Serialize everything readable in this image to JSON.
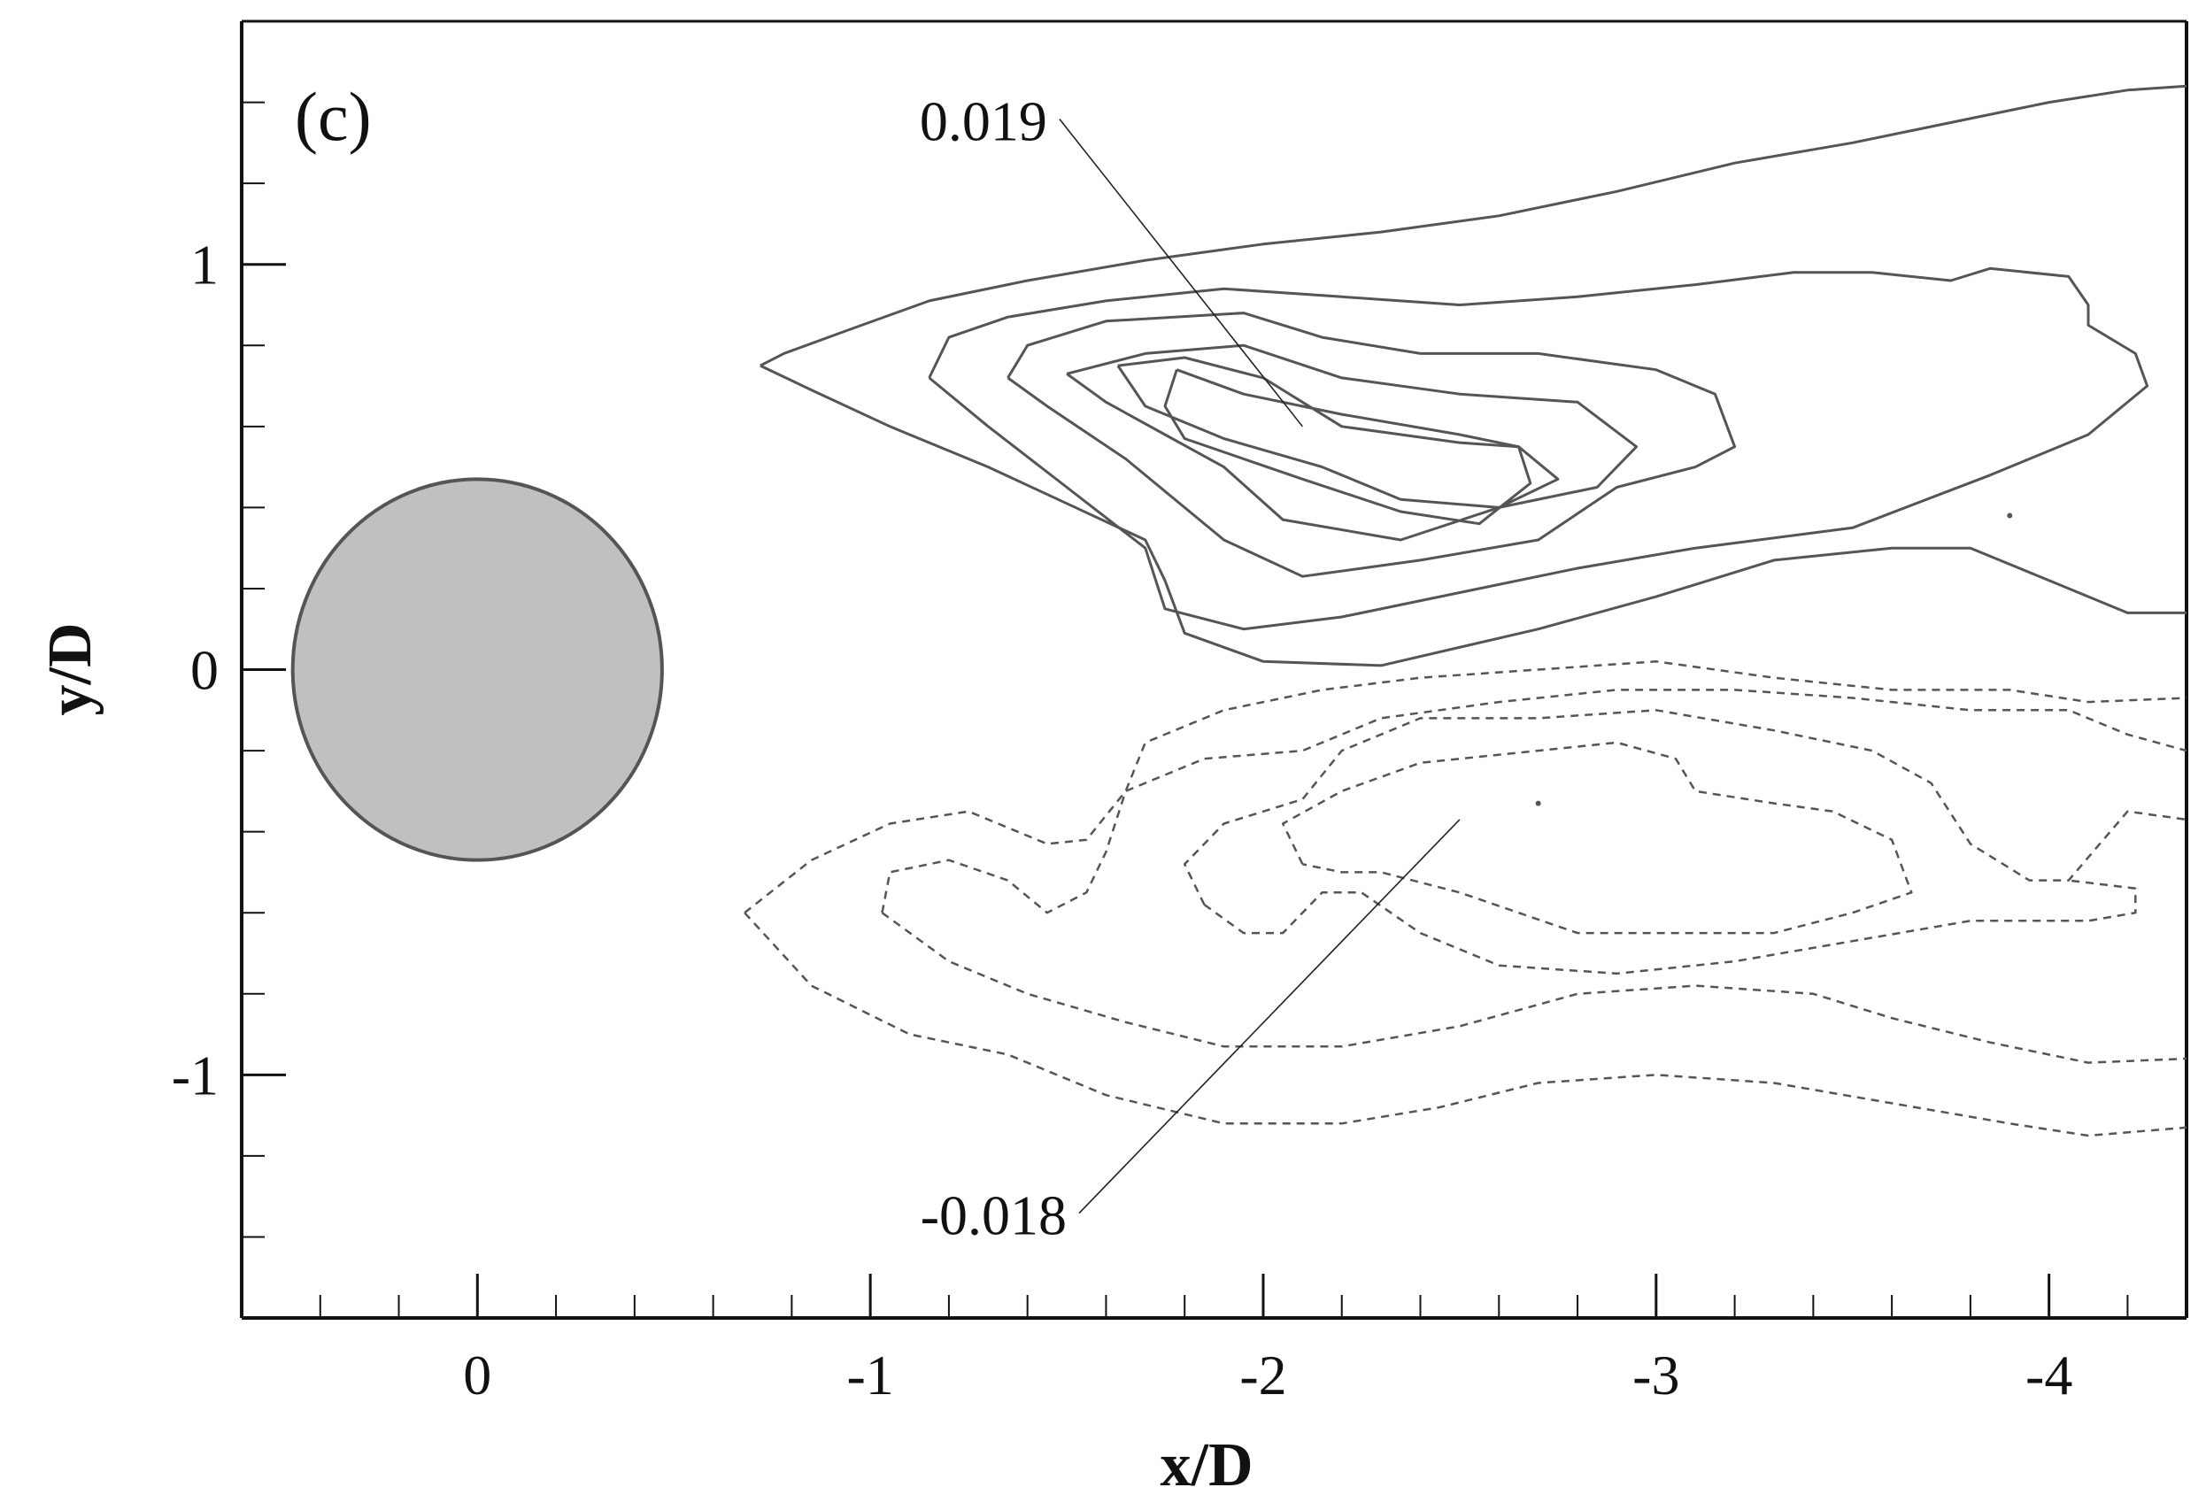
{
  "chart_data": {
    "type": "contour",
    "panel_label": "(c)",
    "xlabel": "x/D",
    "ylabel": "y/D",
    "xlim": [
      0.6,
      -4.35
    ],
    "ylim": [
      -1.6,
      1.6
    ],
    "x_ticks": [
      0,
      -1,
      -2,
      -3,
      -4
    ],
    "x_tick_labels": [
      "0",
      "-1",
      "-2",
      "-3",
      "-4"
    ],
    "y_ticks": [
      -1,
      0,
      1
    ],
    "y_tick_labels": [
      "-1",
      "0",
      "1"
    ],
    "cylinder": {
      "center": [
        0,
        0
      ],
      "radius": 0.47,
      "fill": "#c0c0c0",
      "stroke": "#555555"
    },
    "annotations": [
      {
        "text": "0.019",
        "text_x": -1.45,
        "text_y": 1.35,
        "target_x": -2.1,
        "target_y": 0.6
      },
      {
        "text": "-0.018",
        "text_x": -1.5,
        "text_y": -1.35,
        "target_x": -2.5,
        "target_y": -0.37
      }
    ],
    "positive_contours": [
      [
        [
          -0.72,
          0.75
        ],
        [
          -0.78,
          0.78
        ],
        [
          -0.95,
          0.84
        ],
        [
          -1.15,
          0.91
        ],
        [
          -1.4,
          0.96
        ],
        [
          -1.7,
          1.01
        ],
        [
          -2.0,
          1.05
        ],
        [
          -2.3,
          1.08
        ],
        [
          -2.6,
          1.12
        ],
        [
          -2.9,
          1.18
        ],
        [
          -3.2,
          1.25
        ],
        [
          -3.5,
          1.3
        ],
        [
          -3.8,
          1.36
        ],
        [
          -4.0,
          1.4
        ],
        [
          -4.2,
          1.43
        ],
        [
          -4.35,
          1.44
        ]
      ],
      [
        [
          -0.72,
          0.75
        ],
        [
          -0.85,
          0.69
        ],
        [
          -1.05,
          0.6
        ],
        [
          -1.3,
          0.5
        ],
        [
          -1.5,
          0.41
        ],
        [
          -1.7,
          0.32
        ],
        [
          -1.75,
          0.22
        ],
        [
          -1.8,
          0.09
        ],
        [
          -2.0,
          0.02
        ],
        [
          -2.3,
          0.01
        ],
        [
          -2.7,
          0.1
        ],
        [
          -3.0,
          0.18
        ],
        [
          -3.3,
          0.27
        ],
        [
          -3.6,
          0.3
        ],
        [
          -3.8,
          0.3
        ],
        [
          -4.0,
          0.22
        ],
        [
          -4.2,
          0.14
        ],
        [
          -4.35,
          0.14
        ]
      ],
      [
        [
          -1.15,
          0.72
        ],
        [
          -1.2,
          0.82
        ],
        [
          -1.35,
          0.87
        ],
        [
          -1.6,
          0.91
        ],
        [
          -1.9,
          0.94
        ],
        [
          -2.2,
          0.92
        ],
        [
          -2.5,
          0.9
        ],
        [
          -2.8,
          0.92
        ],
        [
          -3.1,
          0.95
        ],
        [
          -3.35,
          0.98
        ],
        [
          -3.55,
          0.98
        ],
        [
          -3.75,
          0.96
        ],
        [
          -3.85,
          0.99
        ],
        [
          -4.05,
          0.97
        ],
        [
          -4.1,
          0.9
        ],
        [
          -4.1,
          0.85
        ],
        [
          -4.22,
          0.78
        ],
        [
          -4.25,
          0.7
        ],
        [
          -4.1,
          0.58
        ],
        [
          -3.85,
          0.48
        ],
        [
          -3.5,
          0.35
        ],
        [
          -3.1,
          0.3
        ],
        [
          -2.8,
          0.25
        ],
        [
          -2.5,
          0.19
        ],
        [
          -2.2,
          0.13
        ],
        [
          -1.95,
          0.1
        ],
        [
          -1.75,
          0.15
        ],
        [
          -1.7,
          0.3
        ],
        [
          -1.5,
          0.45
        ],
        [
          -1.3,
          0.6
        ],
        [
          -1.15,
          0.72
        ]
      ],
      [
        [
          -1.35,
          0.72
        ],
        [
          -1.4,
          0.8
        ],
        [
          -1.6,
          0.86
        ],
        [
          -1.95,
          0.88
        ],
        [
          -2.15,
          0.82
        ],
        [
          -2.4,
          0.78
        ],
        [
          -2.7,
          0.78
        ],
        [
          -3.0,
          0.74
        ],
        [
          -3.15,
          0.68
        ],
        [
          -3.2,
          0.55
        ],
        [
          -3.1,
          0.5
        ],
        [
          -2.9,
          0.45
        ],
        [
          -2.7,
          0.32
        ],
        [
          -2.4,
          0.27
        ],
        [
          -2.1,
          0.23
        ],
        [
          -1.9,
          0.32
        ],
        [
          -1.65,
          0.52
        ],
        [
          -1.45,
          0.65
        ],
        [
          -1.35,
          0.72
        ]
      ],
      [
        [
          -1.5,
          0.73
        ],
        [
          -1.7,
          0.78
        ],
        [
          -1.95,
          0.8
        ],
        [
          -2.2,
          0.72
        ],
        [
          -2.5,
          0.68
        ],
        [
          -2.8,
          0.66
        ],
        [
          -2.95,
          0.55
        ],
        [
          -2.85,
          0.45
        ],
        [
          -2.6,
          0.4
        ],
        [
          -2.35,
          0.32
        ],
        [
          -2.05,
          0.37
        ],
        [
          -1.9,
          0.5
        ],
        [
          -1.75,
          0.58
        ],
        [
          -1.6,
          0.66
        ],
        [
          -1.5,
          0.73
        ]
      ],
      [
        [
          -1.63,
          0.75
        ],
        [
          -1.8,
          0.77
        ],
        [
          -2.0,
          0.72
        ],
        [
          -2.2,
          0.6
        ],
        [
          -2.5,
          0.56
        ],
        [
          -2.65,
          0.55
        ],
        [
          -2.75,
          0.47
        ],
        [
          -2.6,
          0.4
        ],
        [
          -2.35,
          0.42
        ],
        [
          -2.15,
          0.5
        ],
        [
          -1.9,
          0.57
        ],
        [
          -1.7,
          0.65
        ],
        [
          -1.63,
          0.75
        ]
      ],
      [
        [
          -1.78,
          0.74
        ],
        [
          -1.95,
          0.68
        ],
        [
          -2.2,
          0.63
        ],
        [
          -2.5,
          0.58
        ],
        [
          -2.65,
          0.55
        ],
        [
          -2.68,
          0.46
        ],
        [
          -2.55,
          0.36
        ],
        [
          -2.35,
          0.39
        ],
        [
          -2.1,
          0.47
        ],
        [
          -1.95,
          0.52
        ],
        [
          -1.8,
          0.57
        ],
        [
          -1.75,
          0.65
        ],
        [
          -1.78,
          0.74
        ]
      ]
    ],
    "negative_contours": [
      [
        [
          -0.68,
          -0.6
        ],
        [
          -0.85,
          -0.47
        ],
        [
          -1.05,
          -0.38
        ],
        [
          -1.25,
          -0.35
        ],
        [
          -1.45,
          -0.43
        ],
        [
          -1.55,
          -0.42
        ],
        [
          -1.65,
          -0.3
        ],
        [
          -1.7,
          -0.18
        ],
        [
          -1.9,
          -0.1
        ],
        [
          -2.15,
          -0.05
        ],
        [
          -2.4,
          -0.02
        ],
        [
          -2.7,
          0.0
        ],
        [
          -3.0,
          0.02
        ],
        [
          -3.3,
          -0.02
        ],
        [
          -3.6,
          -0.05
        ],
        [
          -3.9,
          -0.05
        ],
        [
          -4.1,
          -0.08
        ],
        [
          -4.35,
          -0.07
        ]
      ],
      [
        [
          -0.68,
          -0.6
        ],
        [
          -0.85,
          -0.78
        ],
        [
          -1.1,
          -0.9
        ],
        [
          -1.35,
          -0.95
        ],
        [
          -1.6,
          -1.05
        ],
        [
          -1.9,
          -1.12
        ],
        [
          -2.2,
          -1.12
        ],
        [
          -2.45,
          -1.08
        ],
        [
          -2.7,
          -1.02
        ],
        [
          -3.0,
          -1.0
        ],
        [
          -3.3,
          -1.02
        ],
        [
          -3.6,
          -1.07
        ],
        [
          -3.9,
          -1.12
        ],
        [
          -4.1,
          -1.15
        ],
        [
          -4.35,
          -1.13
        ]
      ],
      [
        [
          -1.03,
          -0.6
        ],
        [
          -1.05,
          -0.5
        ],
        [
          -1.2,
          -0.47
        ],
        [
          -1.35,
          -0.52
        ],
        [
          -1.45,
          -0.6
        ],
        [
          -1.55,
          -0.55
        ],
        [
          -1.6,
          -0.45
        ],
        [
          -1.65,
          -0.3
        ],
        [
          -1.85,
          -0.22
        ],
        [
          -2.1,
          -0.2
        ],
        [
          -2.3,
          -0.12
        ],
        [
          -2.6,
          -0.08
        ],
        [
          -2.9,
          -0.05
        ],
        [
          -3.2,
          -0.05
        ],
        [
          -3.5,
          -0.07
        ],
        [
          -3.8,
          -0.1
        ],
        [
          -4.05,
          -0.1
        ],
        [
          -4.2,
          -0.16
        ],
        [
          -4.35,
          -0.2
        ]
      ],
      [
        [
          -1.03,
          -0.6
        ],
        [
          -1.2,
          -0.72
        ],
        [
          -1.4,
          -0.8
        ],
        [
          -1.65,
          -0.87
        ],
        [
          -1.9,
          -0.93
        ],
        [
          -2.2,
          -0.93
        ],
        [
          -2.5,
          -0.88
        ],
        [
          -2.8,
          -0.8
        ],
        [
          -3.1,
          -0.78
        ],
        [
          -3.4,
          -0.8
        ],
        [
          -3.6,
          -0.86
        ],
        [
          -3.85,
          -0.92
        ],
        [
          -4.1,
          -0.97
        ],
        [
          -4.35,
          -0.96
        ]
      ],
      [
        [
          -1.85,
          -0.58
        ],
        [
          -1.8,
          -0.48
        ],
        [
          -1.9,
          -0.38
        ],
        [
          -2.1,
          -0.32
        ],
        [
          -2.2,
          -0.2
        ],
        [
          -2.4,
          -0.12
        ],
        [
          -2.7,
          -0.12
        ],
        [
          -3.0,
          -0.1
        ],
        [
          -3.3,
          -0.15
        ],
        [
          -3.55,
          -0.2
        ],
        [
          -3.7,
          -0.28
        ],
        [
          -3.8,
          -0.43
        ],
        [
          -3.95,
          -0.52
        ],
        [
          -4.05,
          -0.52
        ],
        [
          -4.2,
          -0.35
        ],
        [
          -4.35,
          -0.37
        ]
      ],
      [
        [
          -1.85,
          -0.58
        ],
        [
          -1.95,
          -0.65
        ],
        [
          -2.05,
          -0.65
        ],
        [
          -2.1,
          -0.6
        ],
        [
          -2.15,
          -0.55
        ],
        [
          -2.25,
          -0.55
        ],
        [
          -2.4,
          -0.65
        ],
        [
          -2.6,
          -0.73
        ],
        [
          -2.9,
          -0.75
        ],
        [
          -3.2,
          -0.72
        ],
        [
          -3.5,
          -0.67
        ],
        [
          -3.8,
          -0.62
        ],
        [
          -4.1,
          -0.62
        ],
        [
          -4.22,
          -0.6
        ],
        [
          -4.22,
          -0.54
        ],
        [
          -4.05,
          -0.52
        ]
      ],
      [
        [
          -2.1,
          -0.48
        ],
        [
          -2.05,
          -0.38
        ],
        [
          -2.2,
          -0.3
        ],
        [
          -2.4,
          -0.23
        ],
        [
          -2.7,
          -0.2
        ],
        [
          -2.9,
          -0.18
        ],
        [
          -3.05,
          -0.22
        ],
        [
          -3.1,
          -0.3
        ],
        [
          -3.3,
          -0.33
        ],
        [
          -3.45,
          -0.35
        ],
        [
          -3.6,
          -0.42
        ],
        [
          -3.65,
          -0.55
        ],
        [
          -3.5,
          -0.6
        ],
        [
          -3.3,
          -0.65
        ],
        [
          -3.1,
          -0.65
        ],
        [
          -2.8,
          -0.65
        ],
        [
          -2.5,
          -0.55
        ],
        [
          -2.3,
          -0.5
        ],
        [
          -2.2,
          -0.5
        ],
        [
          -2.1,
          -0.48
        ]
      ]
    ],
    "specks": [
      [
        -3.9,
        0.38
      ],
      [
        -2.7,
        -0.33
      ]
    ],
    "colors": {
      "contour": "#555555",
      "axis": "#111111",
      "cylinder_fill": "#c0c0c0"
    }
  }
}
